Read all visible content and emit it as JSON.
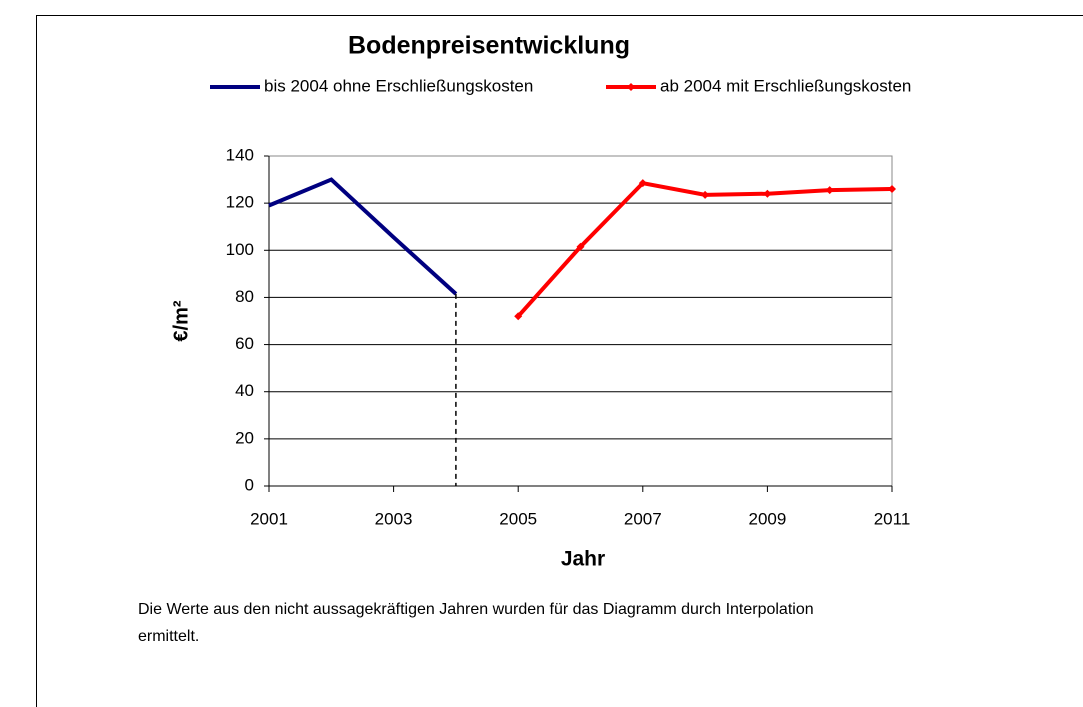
{
  "chart_data": {
    "type": "line",
    "title": "Bodenpreisentwicklung",
    "x_label": "Jahr",
    "y_label": "€/m²",
    "x": [
      2001,
      2002,
      2003,
      2004,
      2005,
      2006,
      2007,
      2008,
      2009,
      2010,
      2011
    ],
    "series": [
      {
        "name": "bis 2004 ohne Erschließungskosten",
        "color": "#000080",
        "marker": false,
        "values": [
          119,
          130,
          105.5,
          81.5,
          null,
          null,
          null,
          null,
          null,
          null,
          null
        ]
      },
      {
        "name": "ab 2004 mit Erschließungskosten",
        "color": "#ff0000",
        "marker": true,
        "values": [
          null,
          null,
          null,
          null,
          72,
          101.5,
          128.5,
          123.5,
          124,
          125.5,
          126
        ]
      }
    ],
    "xlim": [
      2001,
      2011
    ],
    "xticks": [
      2001,
      2003,
      2005,
      2007,
      2009,
      2011
    ],
    "ylim": [
      0,
      140
    ],
    "yticks": [
      0,
      20,
      40,
      60,
      80,
      100,
      120,
      140
    ],
    "grid": true,
    "legend": "top",
    "note_lines": [
      "Die Werte aus den nicht aussagekräftigen Jahren wurden für das Diagramm durch Interpolation",
      "ermittelt."
    ]
  }
}
